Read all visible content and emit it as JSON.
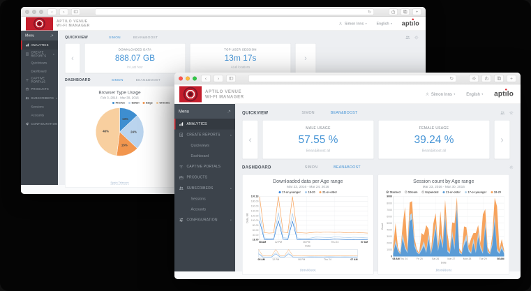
{
  "brand": {
    "line1": "APTILO VENUE",
    "line2": "WI-FI MANAGER",
    "wordmark": "aptilo"
  },
  "header": {
    "user": "Simon Inns",
    "language": "English"
  },
  "chrome": {
    "reload_glyph": "↻",
    "back_glyph": "‹",
    "forward_glyph": "›",
    "newtab_glyph": "+"
  },
  "sidebar": {
    "menu_label": "Menu",
    "items": [
      {
        "label": "ANALYTICS",
        "icon": "analytics-icon",
        "active": true
      },
      {
        "label": "CREATE REPORTS",
        "icon": "reports-icon",
        "caret": "up"
      },
      {
        "label": "Quickviews",
        "sub": true
      },
      {
        "label": "Dashboard",
        "sub": true
      },
      {
        "label": "CAPTIVE PORTALS",
        "icon": "wifi-icon"
      },
      {
        "label": "PRODUCTS",
        "icon": "products-icon"
      },
      {
        "label": "SUBSCRIBERS",
        "icon": "subscribers-icon",
        "caret": "up"
      },
      {
        "label": "Sessions",
        "sub": true
      },
      {
        "label": "Accounts",
        "sub": true
      },
      {
        "label": "CONFIGURATION",
        "icon": "config-icon",
        "caret": "down"
      }
    ]
  },
  "back_window": {
    "quickview_label": "QUICKVIEW",
    "quickview_tabs": [
      {
        "label": "SIMON",
        "active": true
      },
      {
        "label": "BEAN&BOOST",
        "active": false
      }
    ],
    "stat_cards": [
      {
        "title": "DOWNLOADED DATA",
        "value": "888.07 GB",
        "subtitle": "In Last hour"
      },
      {
        "title": "TOP USER SESSION",
        "value": "13m 17s",
        "subtitle": "At all locations"
      }
    ],
    "dashboard_label": "DASHBOARD",
    "dashboard_tabs": [
      {
        "label": "SIMON",
        "active": true
      },
      {
        "label": "BEAN&BOOST",
        "active": false
      }
    ],
    "carousel_prev": "‹",
    "carousel_next": "›"
  },
  "front_window": {
    "quickview_label": "QUICKVIEW",
    "quickview_tabs": [
      {
        "label": "SIMON",
        "active": false
      },
      {
        "label": "BEAN&BOOST",
        "active": true
      }
    ],
    "stat_cards": [
      {
        "title": "MALE USAGE",
        "value": "57.55 %",
        "subtitle": "Bean&Boost all"
      },
      {
        "title": "FEMALE USAGE",
        "value": "39.24 %",
        "subtitle": "Bean&Boost all"
      }
    ],
    "dashboard_label": "DASHBOARD",
    "dashboard_tabs": [
      {
        "label": "SIMON",
        "active": false
      },
      {
        "label": "BEAN&BOOST",
        "active": true
      }
    ],
    "carousel_prev": "‹",
    "carousel_next": "›"
  },
  "colors": {
    "accent_blue": "#4795d6",
    "sidebar_dark": "#3c434b",
    "sidebar_active_red": "#d8232a",
    "main_bg": "#edeff2",
    "brand_red": "#c41e2c"
  },
  "chart_data": [
    {
      "id": "browser-pie",
      "type": "pie",
      "title": "Browser Type Usage",
      "subtitle": "Feb 3, 2016 - Mar 30, 2016",
      "legend_position": "top-right",
      "watermark": "Spain Telecom",
      "slices": [
        {
          "label": "Firefox",
          "value": 13,
          "color": "#3e8ed0"
        },
        {
          "label": "Safari",
          "value": 24,
          "color": "#bad4ee"
        },
        {
          "label": "Edge",
          "value": 15,
          "color": "#f2964e"
        },
        {
          "label": "Chrome",
          "value": 48,
          "color": "#f8cf9f"
        }
      ]
    },
    {
      "id": "downloads-line",
      "type": "line",
      "title": "Downloaded data per Age range",
      "subtitle": "Mar 23, 2016 - Mar 24, 2016",
      "ylabel": "Data, GB",
      "xlabel": "Date",
      "ylim": [
        18.79,
        197.18
      ],
      "yticks": [
        "197.18",
        "180.00",
        "160.00",
        "140.00",
        "120.00",
        "100.00",
        "80.00",
        "60.00",
        "40.00",
        "18.79"
      ],
      "xticks": [
        {
          "label": "08 AM",
          "pos": 0
        },
        {
          "label": "12 PM",
          "pos": 0.174
        },
        {
          "label": "06 PM",
          "pos": 0.435
        },
        {
          "label": "Thu 24",
          "pos": 0.696
        },
        {
          "label": "07 AM",
          "pos": 1
        }
      ],
      "grid": true,
      "navigator": true,
      "watermark": "Bean&Boost",
      "series": [
        {
          "name": "17-or-younger",
          "color": "#2f7ed8",
          "values": [
            96,
            20,
            19,
            20,
            97,
            21,
            19,
            95,
            20,
            19,
            19,
            20,
            21,
            20,
            19,
            20,
            22,
            21,
            20,
            19,
            20,
            19,
            20,
            19
          ]
        },
        {
          "name": "18-20",
          "color": "#abcdec",
          "values": [
            128,
            26,
            24,
            25,
            130,
            27,
            25,
            127,
            26,
            24,
            24,
            26,
            30,
            29,
            28,
            27,
            31,
            30,
            28,
            27,
            29,
            28,
            27,
            26
          ]
        },
        {
          "name": "21-or-older",
          "color": "#f7a35c",
          "values": [
            196,
            48,
            46,
            47,
            197,
            50,
            47,
            196,
            48,
            47,
            46,
            48,
            50,
            49,
            51,
            50,
            49,
            50,
            48,
            47,
            49,
            48,
            47,
            46
          ]
        }
      ]
    },
    {
      "id": "sessions-stacked",
      "type": "area-stacked",
      "title": "Session count by Age range",
      "subtitle": "Mar 23, 2016 - Mar 30, 2016",
      "modes": [
        "Stacked",
        "Stream",
        "Expanded"
      ],
      "selected_mode": "Stacked",
      "ylabel": "Count",
      "xlabel": "Date",
      "ylim": [
        0,
        9000
      ],
      "yticks": [
        "9000",
        "8000",
        "7000",
        "6000",
        "5000",
        "4000",
        "3000",
        "2000",
        "1000",
        "0"
      ],
      "xticks": [
        {
          "label": "08 AM",
          "pos": 0
        },
        {
          "label": "Thu 24",
          "pos": 0.095
        },
        {
          "label": "Fri 25",
          "pos": 0.238
        },
        {
          "label": "Sat 26",
          "pos": 0.381
        },
        {
          "label": "Mar 27",
          "pos": 0.524
        },
        {
          "label": "Mon 28",
          "pos": 0.667
        },
        {
          "label": "Tue 29",
          "pos": 0.81
        },
        {
          "label": "08 AM",
          "pos": 1
        }
      ],
      "watermark": "Bean&Boost",
      "series": [
        {
          "name": "21-or-older",
          "color": "#5b9cd6",
          "values": [
            400,
            1900,
            800,
            300,
            2700,
            1200,
            500,
            5300,
            5600,
            1500,
            600,
            300,
            900,
            1600,
            500,
            2600,
            300,
            1900,
            4200,
            800,
            2700,
            1200,
            5700,
            700,
            400,
            3000,
            1000,
            7000,
            500,
            300,
            1600,
            2400,
            700,
            400,
            2000,
            500,
            2900,
            1100,
            400,
            4400,
            600,
            300,
            1700,
            5300,
            800,
            400,
            1200,
            400
          ]
        },
        {
          "name": "17-or-younger",
          "color": "#b8d4ea",
          "values": [
            200,
            600,
            300,
            100,
            800,
            400,
            200,
            900,
            900,
            500,
            200,
            100,
            400,
            700,
            300,
            900,
            200,
            600,
            800,
            300,
            700,
            400,
            900,
            300,
            200,
            800,
            500,
            1000,
            300,
            100,
            600,
            900,
            400,
            200,
            700,
            300,
            800,
            500,
            200,
            900,
            300,
            100,
            600,
            1000,
            400,
            200,
            500,
            200
          ]
        },
        {
          "name": "18-20",
          "color": "#f7a35c",
          "values": [
            900,
            2500,
            300,
            100,
            1200,
            5800,
            400,
            1900,
            1800,
            800,
            300,
            100,
            2200,
            900,
            3900,
            600,
            200,
            2400,
            1500,
            400,
            3400,
            700,
            1900,
            2400,
            500,
            1300,
            3500,
            900,
            400,
            200,
            2300,
            1100,
            500,
            2100,
            800,
            2700,
            1000,
            400,
            5700,
            1800,
            500,
            200,
            900,
            2500,
            6300,
            500,
            900,
            300
          ]
        }
      ]
    }
  ]
}
